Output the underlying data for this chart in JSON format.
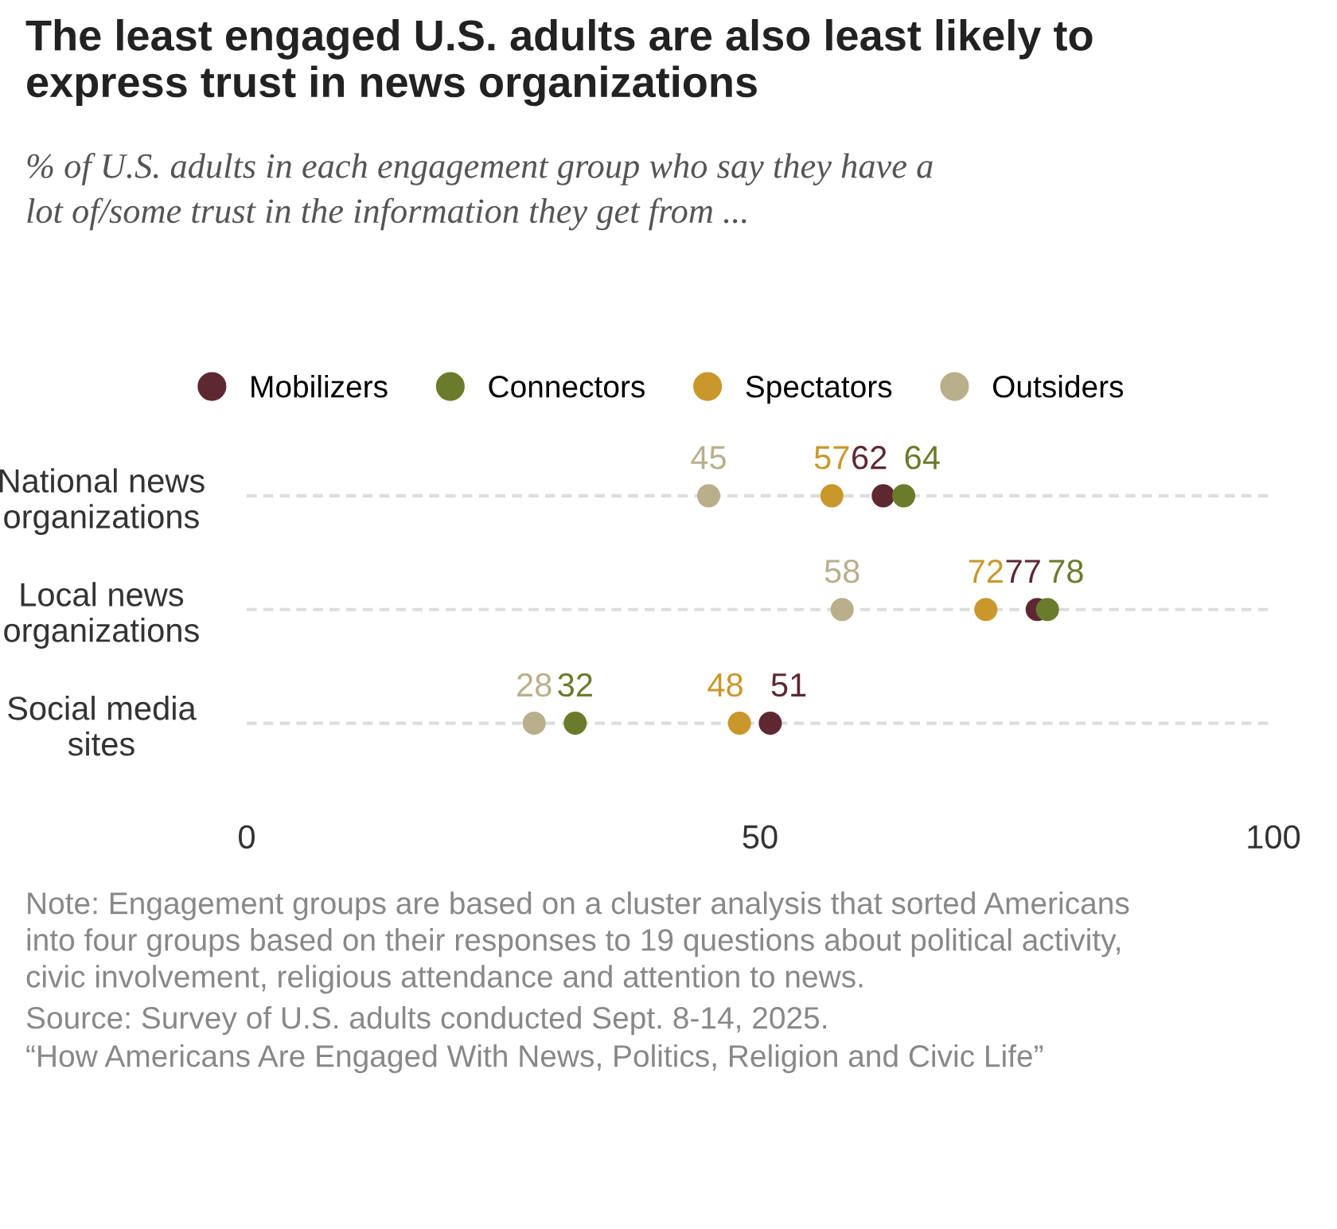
{
  "chart_data": {
    "type": "scatter",
    "orientation": "horizontal",
    "title": "The least engaged U.S. adults are also least likely to\nexpress trust in news organizations",
    "subtitle": "% of U.S. adults in each engagement group who say they have a\nlot of/some trust in the information they get from ...",
    "categories": [
      "National news\norganizations",
      "Local news\norganizations",
      "Social media\nsites"
    ],
    "series": [
      {
        "name": "Mobilizers",
        "color": "#5e2832",
        "values": [
          62,
          77,
          51
        ]
      },
      {
        "name": "Connectors",
        "color": "#6b7b2c",
        "values": [
          64,
          78,
          32
        ]
      },
      {
        "name": "Spectators",
        "color": "#c9972b",
        "values": [
          57,
          72,
          48
        ]
      },
      {
        "name": "Outsiders",
        "color": "#b9af8b",
        "values": [
          45,
          58,
          28
        ]
      }
    ],
    "xlim": [
      0,
      100
    ],
    "xticks": [
      0,
      50,
      100
    ],
    "data_labels": true,
    "legend": "top",
    "grid": "y",
    "marker": "circle",
    "annotations": [
      "Note: Engagement groups are based on a cluster analysis that sorted Americans\ninto four groups based on their responses to 19 questions about political activity,\ncivic involvement, religious attendance and attention to news.",
      "Source: Survey of U.S. adults conducted Sept. 8-14, 2025.",
      "“How Americans Are Engaged With News, Politics, Religion and Civic Life”"
    ]
  }
}
